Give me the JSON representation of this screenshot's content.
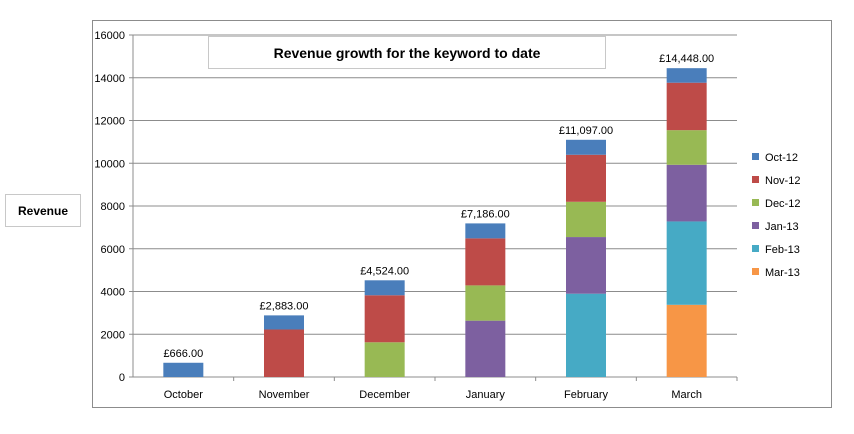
{
  "chart_data": {
    "type": "bar",
    "stacked": true,
    "title": "Revenue growth for the keyword to date",
    "xlabel": "",
    "ylabel": "Revenue",
    "ylim": [
      0,
      16000
    ],
    "yticks": [
      0,
      2000,
      4000,
      6000,
      8000,
      10000,
      12000,
      14000,
      16000
    ],
    "categories": [
      "October",
      "November",
      "December",
      "January",
      "February",
      "March"
    ],
    "series": [
      {
        "name": "Oct-12",
        "color": "#4a7ebb",
        "values": [
          666,
          660,
          700,
          700,
          700,
          680
        ]
      },
      {
        "name": "Nov-12",
        "color": "#be4b48",
        "values": [
          0,
          2223,
          2200,
          2200,
          2200,
          2220
        ]
      },
      {
        "name": "Dec-12",
        "color": "#98b954",
        "values": [
          0,
          0,
          1624,
          1650,
          1650,
          1620
        ]
      },
      {
        "name": "Jan-13",
        "color": "#7d60a0",
        "values": [
          0,
          0,
          0,
          2636,
          2650,
          2650
        ]
      },
      {
        "name": "Feb-13",
        "color": "#46aac5",
        "values": [
          0,
          0,
          0,
          0,
          3897,
          3900
        ]
      },
      {
        "name": "Mar-13",
        "color": "#f79646",
        "values": [
          0,
          0,
          0,
          0,
          0,
          3378
        ]
      }
    ],
    "total_labels": [
      "£666.00",
      "£2,883.00",
      "£4,524.00",
      "£7,186.00",
      "£11,097.00",
      "£14,448.00"
    ],
    "legend_position": "right",
    "grid": true
  }
}
